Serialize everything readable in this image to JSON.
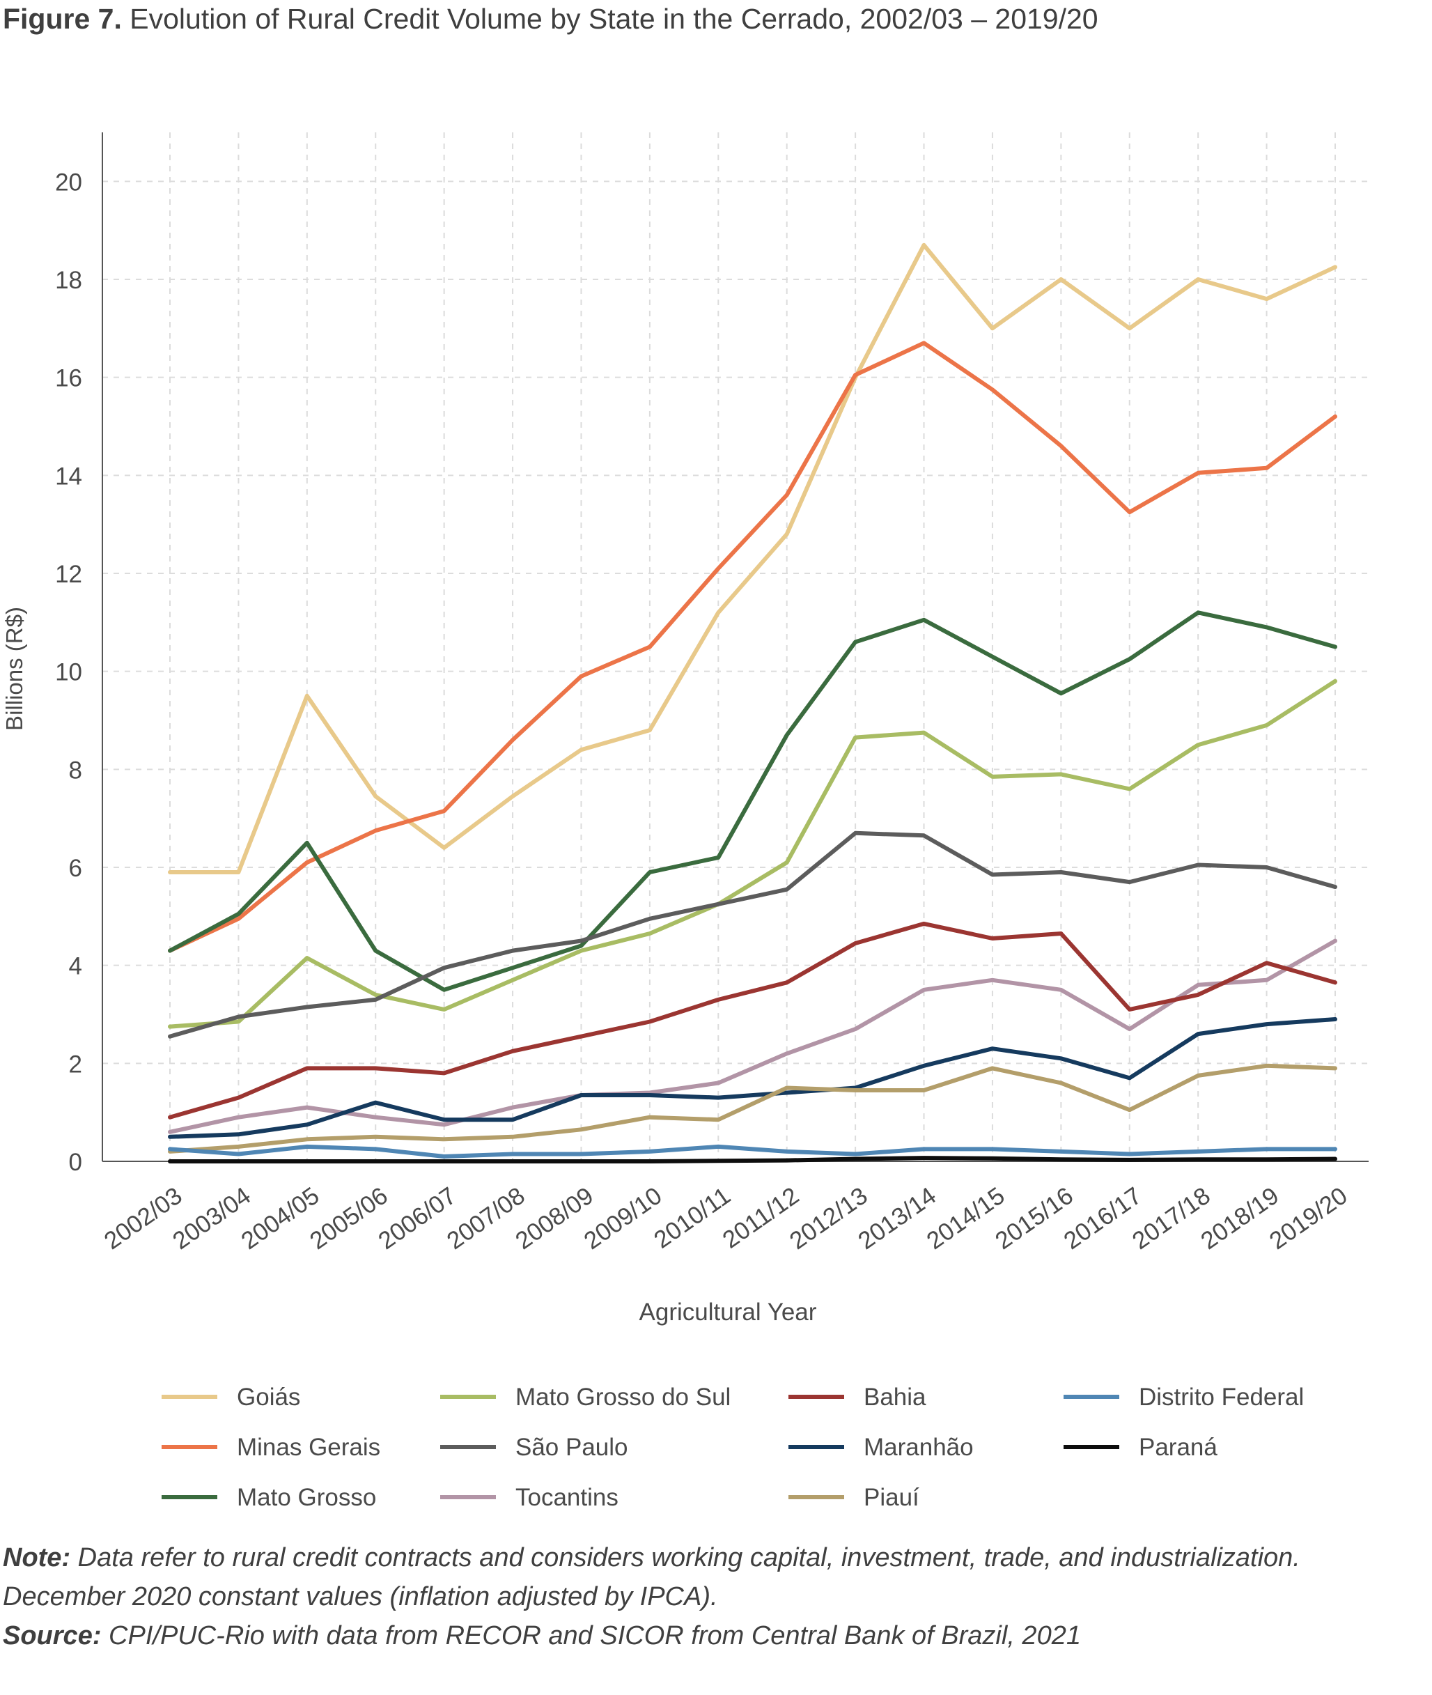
{
  "figure": {
    "label": "Figure 7.",
    "title": "Evolution of Rural Credit Volume by State in the Cerrado, 2002/03 – 2019/20"
  },
  "notes": {
    "note_label": "Note:",
    "note_line1": "Data refer to rural credit contracts and considers working capital, investment, trade, and industrialization.",
    "note_line2": "December 2020 constant values (inflation adjusted by IPCA).",
    "source_label": "Source:",
    "source_text": "CPI/PUC-Rio with data from RECOR and SICOR from Central Bank of Brazil, 2021"
  },
  "chart_data": {
    "type": "line",
    "title": "Evolution of Rural Credit Volume by State in the Cerrado, 2002/03 – 2019/20",
    "xlabel": "Agricultural Year",
    "ylabel": "Billions (R$)",
    "ylim": [
      0,
      21
    ],
    "yticks": [
      0,
      2,
      4,
      6,
      8,
      10,
      12,
      14,
      16,
      18,
      20
    ],
    "grid": "dashed, both axes",
    "legend": "bottom",
    "categories": [
      "2002/03",
      "2003/04",
      "2004/05",
      "2005/06",
      "2006/07",
      "2007/08",
      "2008/09",
      "2009/10",
      "2010/11",
      "2011/12",
      "2012/13",
      "2013/14",
      "2014/15",
      "2015/16",
      "2016/17",
      "2017/18",
      "2018/19",
      "2019/20"
    ],
    "series": [
      {
        "name": "Goiás",
        "color": "#e8c98a",
        "values": [
          5.9,
          5.9,
          9.5,
          7.45,
          6.4,
          7.45,
          8.4,
          8.8,
          11.2,
          12.8,
          16.0,
          18.7,
          17.0,
          18.0,
          17.0,
          18.0,
          17.6,
          18.25
        ]
      },
      {
        "name": "Minas Gerais",
        "color": "#ec7448",
        "values": [
          4.3,
          4.95,
          6.1,
          6.75,
          7.15,
          8.6,
          9.9,
          10.5,
          12.1,
          13.6,
          16.05,
          16.7,
          15.75,
          14.6,
          13.25,
          14.05,
          14.15,
          15.2
        ]
      },
      {
        "name": "Mato Grosso",
        "color": "#3a6b3e",
        "values": [
          4.3,
          5.05,
          6.5,
          4.3,
          3.5,
          3.95,
          4.4,
          5.9,
          6.2,
          8.7,
          10.6,
          11.05,
          10.3,
          9.55,
          10.25,
          11.2,
          10.9,
          10.5
        ]
      },
      {
        "name": "Mato Grosso do Sul",
        "color": "#a8bc63",
        "values": [
          2.75,
          2.85,
          4.15,
          3.4,
          3.1,
          3.7,
          4.3,
          4.65,
          5.25,
          6.1,
          8.65,
          8.75,
          7.85,
          7.9,
          7.6,
          8.5,
          8.9,
          9.8
        ]
      },
      {
        "name": "São Paulo",
        "color": "#5c5c5c",
        "values": [
          2.55,
          2.95,
          3.15,
          3.3,
          3.95,
          4.3,
          4.5,
          4.95,
          5.25,
          5.55,
          6.7,
          6.65,
          5.85,
          5.9,
          5.7,
          6.05,
          6.0,
          5.6
        ]
      },
      {
        "name": "Tocantins",
        "color": "#b294a6",
        "values": [
          0.6,
          0.9,
          1.1,
          0.9,
          0.75,
          1.1,
          1.35,
          1.4,
          1.6,
          2.2,
          2.7,
          3.5,
          3.7,
          3.5,
          2.7,
          3.6,
          3.7,
          4.5
        ]
      },
      {
        "name": "Bahia",
        "color": "#9b3531",
        "values": [
          0.9,
          1.3,
          1.9,
          1.9,
          1.8,
          2.25,
          2.55,
          2.85,
          3.3,
          3.65,
          4.45,
          4.85,
          4.55,
          4.65,
          3.1,
          3.4,
          4.05,
          3.65
        ]
      },
      {
        "name": "Maranhão",
        "color": "#153a5e",
        "values": [
          0.5,
          0.55,
          0.75,
          1.2,
          0.85,
          0.85,
          1.35,
          1.35,
          1.3,
          1.4,
          1.5,
          1.95,
          2.3,
          2.1,
          1.7,
          2.6,
          2.8,
          2.9
        ]
      },
      {
        "name": "Piauí",
        "color": "#b39e6a",
        "values": [
          0.2,
          0.3,
          0.45,
          0.5,
          0.45,
          0.5,
          0.65,
          0.9,
          0.85,
          1.5,
          1.45,
          1.45,
          1.9,
          1.6,
          1.05,
          1.75,
          1.95,
          1.9
        ]
      },
      {
        "name": "Distrito Federal",
        "color": "#4f86b4",
        "values": [
          0.25,
          0.15,
          0.3,
          0.25,
          0.1,
          0.15,
          0.15,
          0.2,
          0.3,
          0.2,
          0.15,
          0.25,
          0.25,
          0.2,
          0.15,
          0.2,
          0.25,
          0.25
        ]
      },
      {
        "name": "Paraná",
        "color": "#0d0d0d",
        "values": [
          0.0,
          0.0,
          0.0,
          0.0,
          0.0,
          0.0,
          0.0,
          0.0,
          0.01,
          0.02,
          0.05,
          0.07,
          0.06,
          0.04,
          0.03,
          0.04,
          0.04,
          0.05
        ]
      }
    ]
  }
}
